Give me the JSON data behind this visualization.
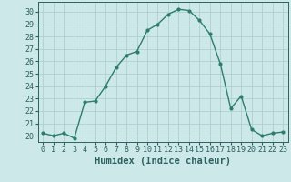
{
  "x": [
    0,
    1,
    2,
    3,
    4,
    5,
    6,
    7,
    8,
    9,
    10,
    11,
    12,
    13,
    14,
    15,
    16,
    17,
    18,
    19,
    20,
    21,
    22,
    23
  ],
  "y": [
    20.2,
    20.0,
    20.2,
    19.8,
    22.7,
    22.8,
    24.0,
    25.5,
    26.5,
    26.8,
    28.5,
    29.0,
    29.8,
    30.2,
    30.1,
    29.3,
    28.2,
    25.8,
    22.2,
    23.2,
    20.5,
    20.0,
    20.2,
    20.3
  ],
  "line_color": "#2d7d6e",
  "marker": "o",
  "markersize": 2.0,
  "linewidth": 1.0,
  "bg_color": "#cce8e8",
  "grid_color": "#aacccc",
  "xlabel": "Humidex (Indice chaleur)",
  "xlim": [
    -0.5,
    23.5
  ],
  "ylim": [
    19.5,
    30.8
  ],
  "yticks": [
    20,
    21,
    22,
    23,
    24,
    25,
    26,
    27,
    28,
    29,
    30
  ],
  "xticks": [
    0,
    1,
    2,
    3,
    4,
    5,
    6,
    7,
    8,
    9,
    10,
    11,
    12,
    13,
    14,
    15,
    16,
    17,
    18,
    19,
    20,
    21,
    22,
    23
  ],
  "tick_label_fontsize": 6.0,
  "xlabel_fontsize": 7.5,
  "tick_color": "#2d6060",
  "axis_color": "#2d6060"
}
